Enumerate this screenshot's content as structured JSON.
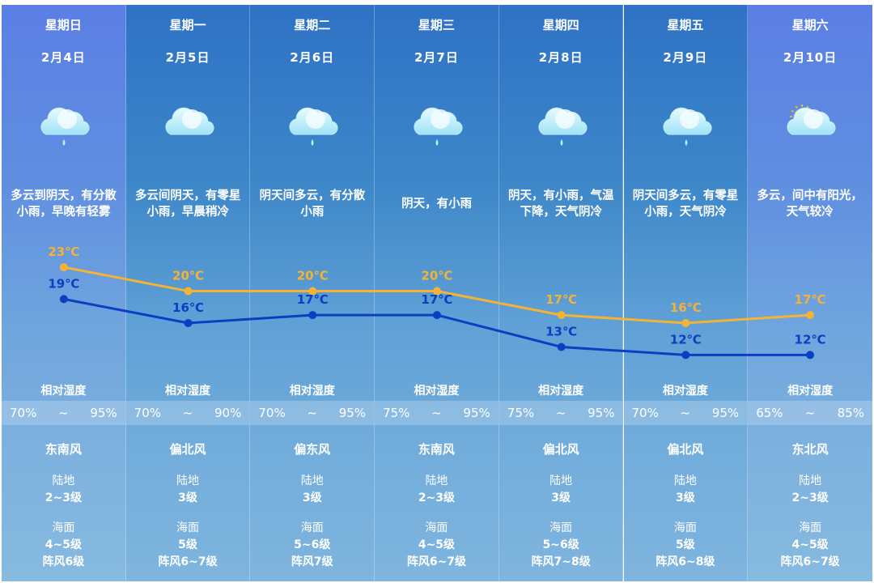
{
  "days": [
    {
      "weekday": "星期日",
      "date": "2月4日",
      "icon": "cloud-rain-icon",
      "desc": "多云到阴天，有分散小雨，早晚有轻雾",
      "humidity": {
        "low": "70%",
        "sep": "~",
        "high": "95%"
      },
      "wind_dir": "东南风",
      "land_label": "陆地",
      "land": "2~3级",
      "sea_label": "海面",
      "sea": "4~5级",
      "gust": "阵风6级",
      "weekend": true
    },
    {
      "weekday": "星期一",
      "date": "2月5日",
      "icon": "cloud-icon",
      "desc": "多云间阴天，有零星小雨，早晨稍冷",
      "humidity": {
        "low": "70%",
        "sep": "~",
        "high": "90%"
      },
      "wind_dir": "偏北风",
      "land_label": "陆地",
      "land": "3级",
      "sea_label": "海面",
      "sea": "5级",
      "gust": "阵风6~7级",
      "weekend": false
    },
    {
      "weekday": "星期二",
      "date": "2月6日",
      "icon": "cloud-rain-icon",
      "desc": "阴天间多云，有分散小雨",
      "humidity": {
        "low": "70%",
        "sep": "~",
        "high": "95%"
      },
      "wind_dir": "偏东风",
      "land_label": "陆地",
      "land": "3级",
      "sea_label": "海面",
      "sea": "5~6级",
      "gust": "阵风7级",
      "weekend": false
    },
    {
      "weekday": "星期三",
      "date": "2月7日",
      "icon": "cloud-rain-icon",
      "desc": "阴天，有小雨",
      "humidity": {
        "low": "75%",
        "sep": "~",
        "high": "95%"
      },
      "wind_dir": "东南风",
      "land_label": "陆地",
      "land": "2~3级",
      "sea_label": "海面",
      "sea": "4~5级",
      "gust": "阵风6~7级",
      "weekend": false
    },
    {
      "weekday": "星期四",
      "date": "2月8日",
      "icon": "cloud-rain-icon",
      "desc": "阴天，有小雨，气温下降，天气阴冷",
      "humidity": {
        "low": "75%",
        "sep": "~",
        "high": "95%"
      },
      "wind_dir": "偏北风",
      "land_label": "陆地",
      "land": "3级",
      "sea_label": "海面",
      "sea": "5~6级",
      "gust": "阵风7~8级",
      "weekend": false
    },
    {
      "weekday": "星期五",
      "date": "2月9日",
      "icon": "cloud-rain-icon",
      "desc": "阴天间多云，有零星小雨，天气阴冷",
      "humidity": {
        "low": "70%",
        "sep": "~",
        "high": "95%"
      },
      "wind_dir": "偏北风",
      "land_label": "陆地",
      "land": "3级",
      "sea_label": "海面",
      "sea": "5级",
      "gust": "阵风6~8级",
      "weekend": false
    },
    {
      "weekday": "星期六",
      "date": "2月10日",
      "icon": "sun-cloud-icon",
      "desc": "多云，间中有阳光，天气较冷",
      "humidity": {
        "low": "65%",
        "sep": "~",
        "high": "85%"
      },
      "wind_dir": "东北风",
      "land_label": "陆地",
      "land": "2~3级",
      "sea_label": "海面",
      "sea": "4~5级",
      "gust": "阵风6~7级",
      "weekend": true
    }
  ],
  "humidity_label": "相对湿度",
  "chart_data": {
    "type": "line",
    "categories": [
      "2月4日",
      "2月5日",
      "2月6日",
      "2月7日",
      "2月8日",
      "2月9日",
      "2月10日"
    ],
    "unit": "℃",
    "series": [
      {
        "color": "#f5b335",
        "values": [
          23,
          20,
          20,
          20,
          17,
          16,
          17
        ]
      },
      {
        "color": "#0a3fc2",
        "values": [
          19,
          16,
          17,
          17,
          13,
          12,
          12
        ]
      }
    ],
    "grid": false,
    "legend": "none"
  },
  "colors": {
    "high": "#f5b335",
    "low": "#0a3fc2",
    "panel": "#3c86c8",
    "weekend_panel": "#5b7fe4"
  }
}
